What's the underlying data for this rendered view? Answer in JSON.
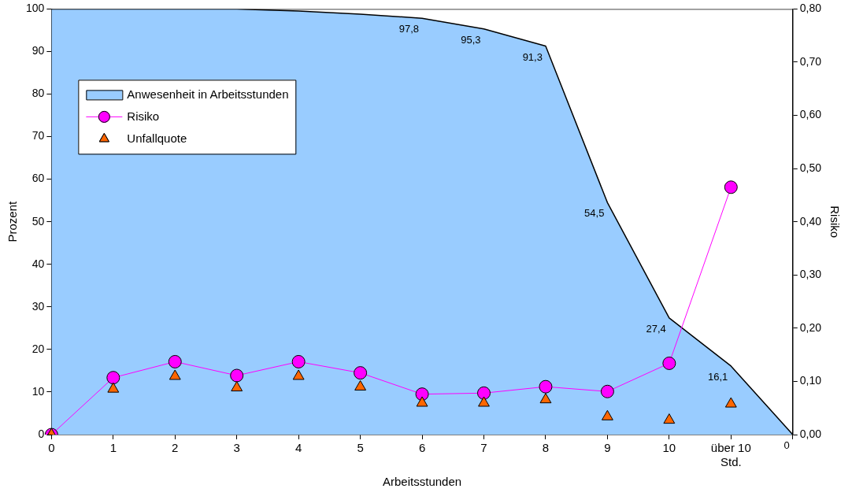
{
  "chart_data": {
    "type": "area",
    "xlabel": "Arbeitsstunden",
    "ylabel": "Prozent",
    "y2label": "Risiko",
    "legend": "top left",
    "categories": [
      "0",
      "1",
      "2",
      "3",
      "4",
      "5",
      "6",
      "7",
      "8",
      "9",
      "10",
      "über 10 Std.",
      null
    ],
    "ylim": [
      0,
      100
    ],
    "yticks": [
      0,
      10,
      20,
      30,
      40,
      50,
      60,
      70,
      80,
      90,
      100
    ],
    "y2lim": [
      0,
      0.8
    ],
    "y2ticks": [
      {
        "value": 0,
        "label": "0,00"
      },
      {
        "value": 0.1,
        "label": "0,10"
      },
      {
        "value": 0.2,
        "label": "0,20"
      },
      {
        "value": 0.3,
        "label": "0,30"
      },
      {
        "value": 0.4,
        "label": "0,40"
      },
      {
        "value": 0.5,
        "label": "0,50"
      },
      {
        "value": 0.6,
        "label": "0,60"
      },
      {
        "value": 0.7,
        "label": "0,70"
      },
      {
        "value": 0.8,
        "label": "0,80"
      }
    ],
    "series": [
      {
        "name": "Anwesenheit in Arbeitsstunden",
        "color": "#99ccff",
        "marker": "none",
        "values": [
          100,
          100,
          100,
          100,
          99.5,
          98.8,
          97.8,
          95.3,
          91.3,
          54.5,
          27.4,
          16.1,
          0
        ],
        "value_labels": [
          null,
          null,
          null,
          null,
          null,
          null,
          "97,8",
          "95,3",
          "91,3",
          "54,5",
          "27,4",
          "16,1",
          "0"
        ]
      },
      {
        "name": "Risiko",
        "type": "line",
        "axis": "y2",
        "color": "#ff00ff",
        "marker": "circle",
        "values": [
          0,
          0.107,
          0.137,
          0.111,
          0.137,
          0.116,
          0.076,
          0.078,
          0.09,
          0.081,
          0.134,
          0.465,
          null
        ]
      },
      {
        "name": "Unfallquote",
        "type": "scatter",
        "color": "#ff6600",
        "marker": "triangle",
        "values": [
          0,
          10.7,
          13.7,
          11,
          13.7,
          11.2,
          7.4,
          7.4,
          8.2,
          4.2,
          3.4,
          7.2,
          null
        ]
      }
    ]
  }
}
